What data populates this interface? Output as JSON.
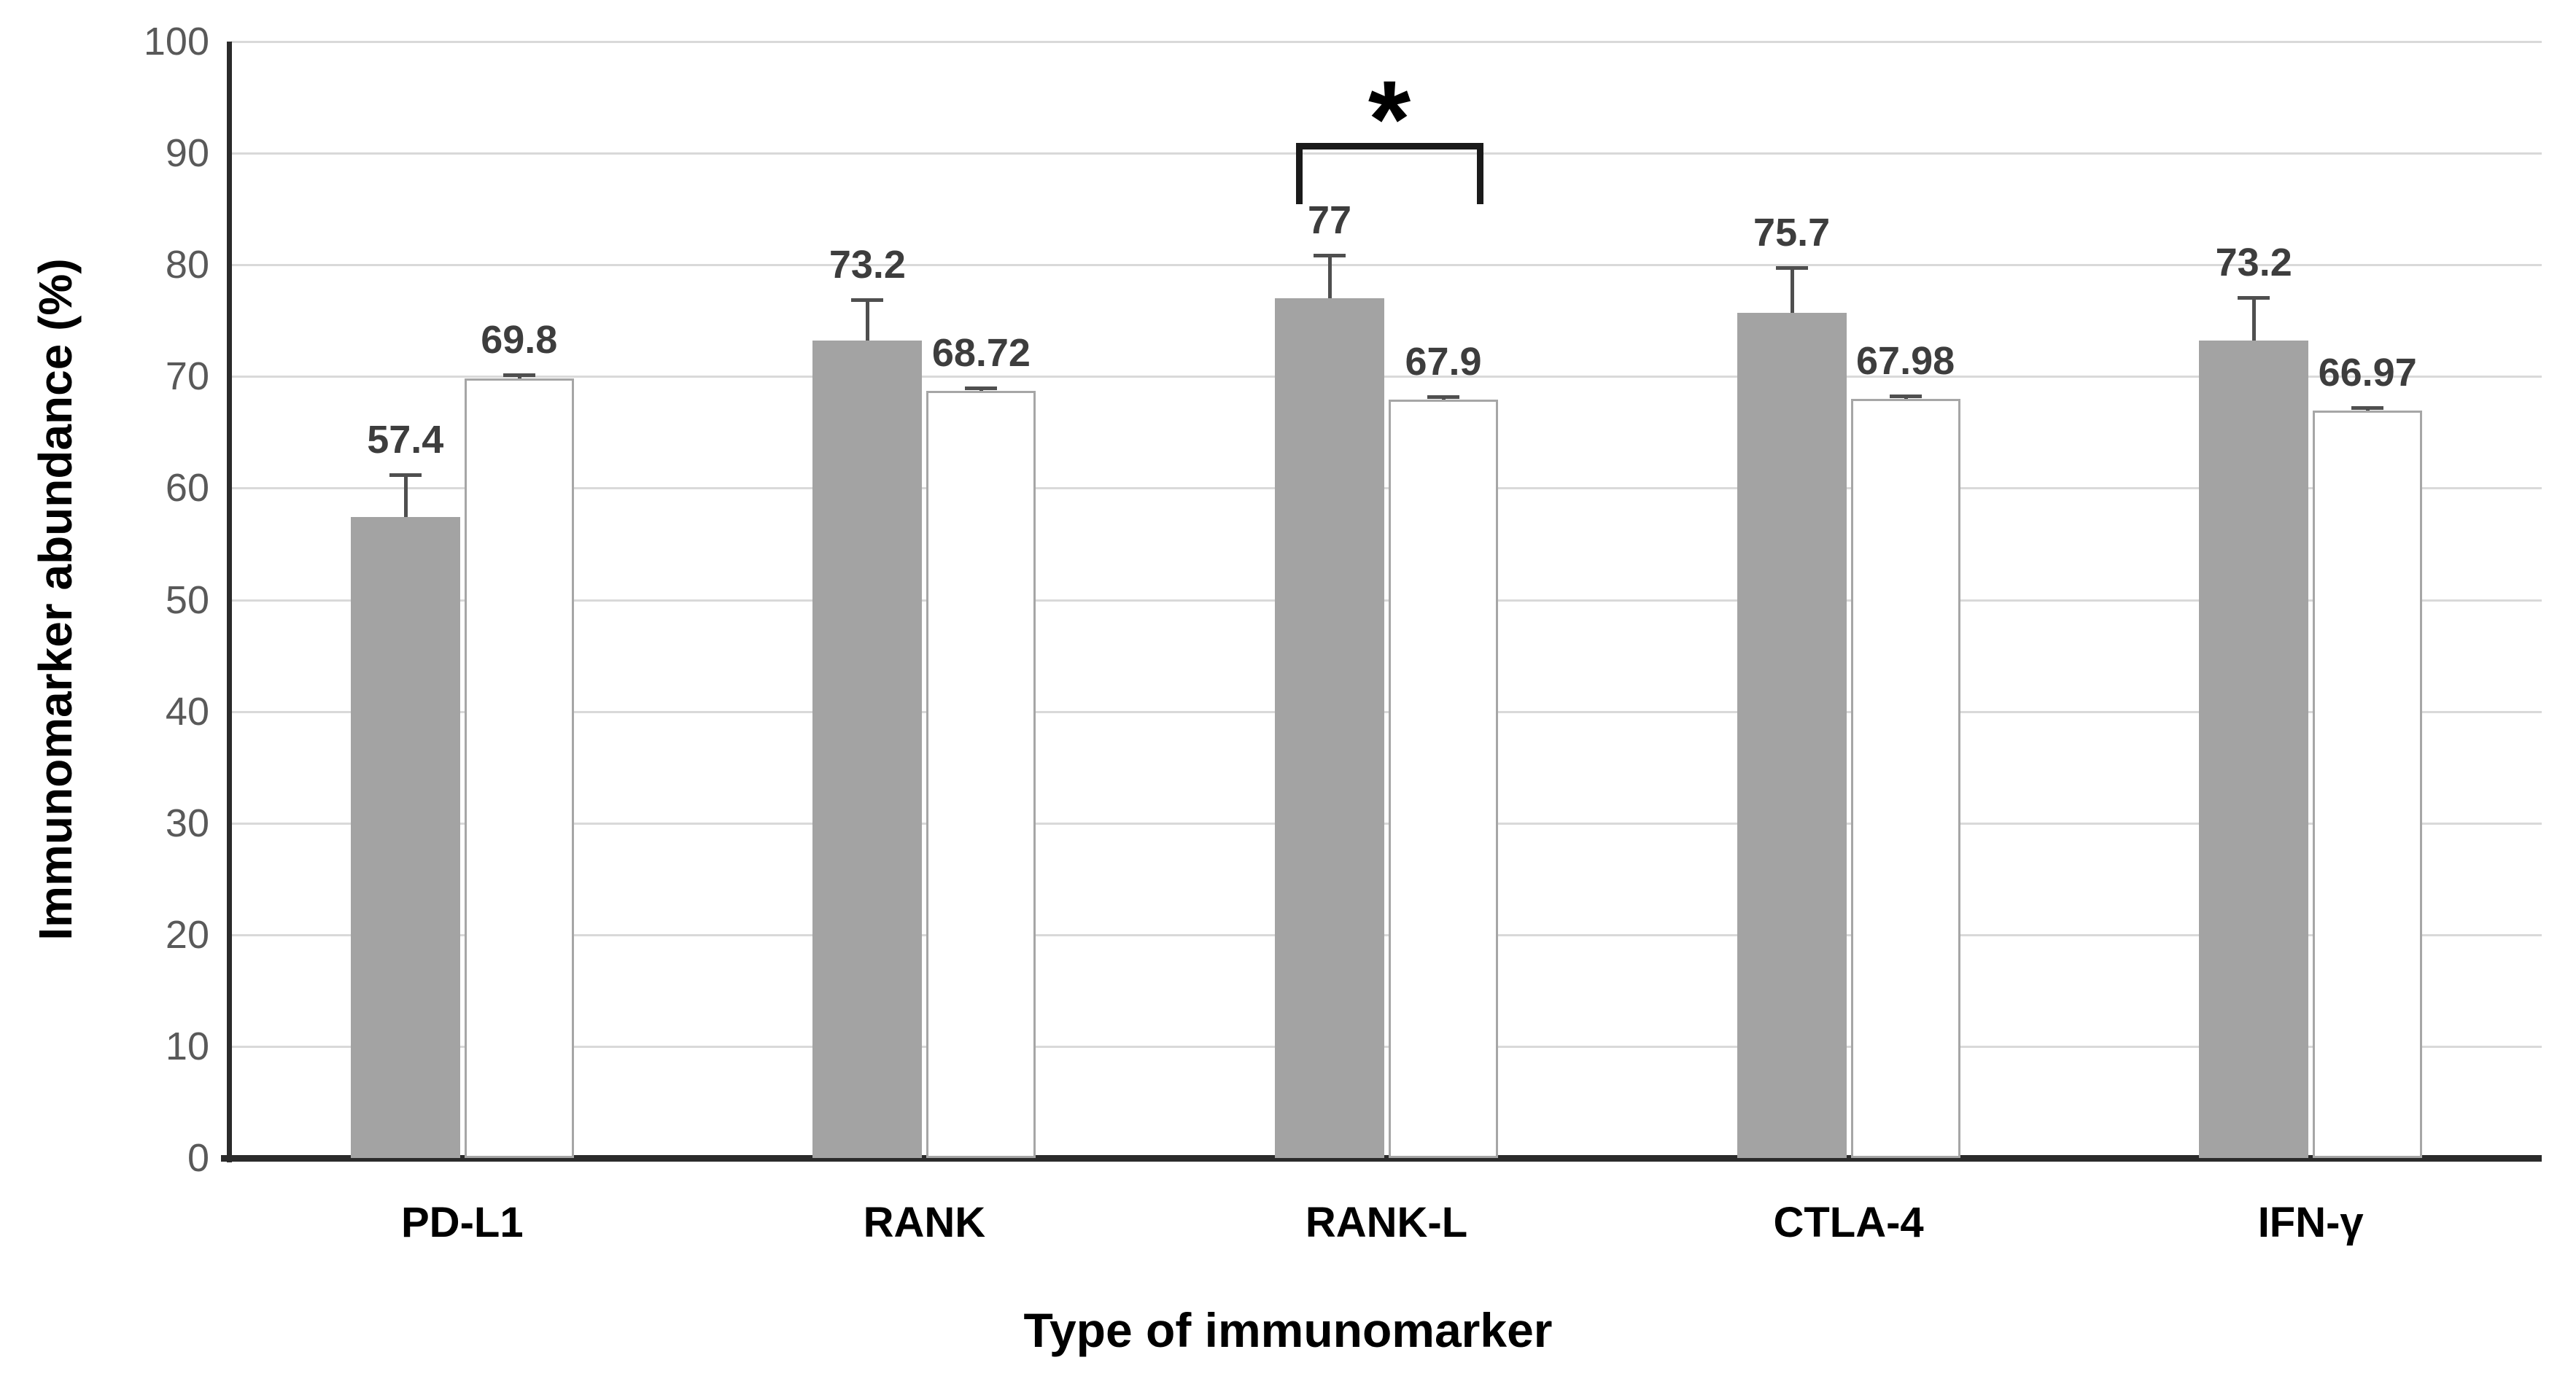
{
  "chart_data": {
    "type": "bar",
    "title": "",
    "categories": [
      "PD-L1",
      "RANK",
      "RANK-L",
      "CTLA-4",
      "IFN-γ"
    ],
    "series": [
      {
        "name": "series_1_gray",
        "fill": "#a3a3a3",
        "border": "none",
        "values": [
          57.4,
          73.2,
          77,
          75.7,
          73.2
        ],
        "value_labels": [
          "57.4",
          "73.2",
          "77",
          "75.7",
          "73.2"
        ],
        "error_plus": [
          3.9,
          3.8,
          4.0,
          4.2,
          4.0
        ]
      },
      {
        "name": "series_2_white",
        "fill": "#ffffff",
        "border": "#a6a6a6",
        "values": [
          69.8,
          68.72,
          67.9,
          67.98,
          66.97
        ],
        "value_labels": [
          "69.8",
          "68.72",
          "67.9",
          "67.98",
          "66.97"
        ],
        "error_plus": [
          0.5,
          0.4,
          0.4,
          0.4,
          0.4
        ]
      }
    ],
    "xlabel": "Type of immunomarker",
    "ylabel": "Immunomarker abundance (%)",
    "ylim": [
      0,
      100
    ],
    "ytick_step": 10,
    "ytick_labels": [
      "0",
      "10",
      "20",
      "30",
      "40",
      "50",
      "60",
      "70",
      "80",
      "90",
      "100"
    ],
    "grid": "horizontal-only",
    "legend": "none",
    "annotations": [
      {
        "type": "significance-bracket",
        "category": "RANK-L",
        "label": "*",
        "connects": [
          "series_1_gray",
          "series_2_white"
        ]
      }
    ],
    "colors": {
      "gridline": "#d9d9d9",
      "axis_line": "#2b2b2b",
      "tick_text": "#595959",
      "value_label_text": "#3d3d3d",
      "category_label_text": "#000000",
      "error_bar": "#4f4f4f",
      "bracket": "#1a1a1a",
      "background": "#ffffff"
    }
  }
}
